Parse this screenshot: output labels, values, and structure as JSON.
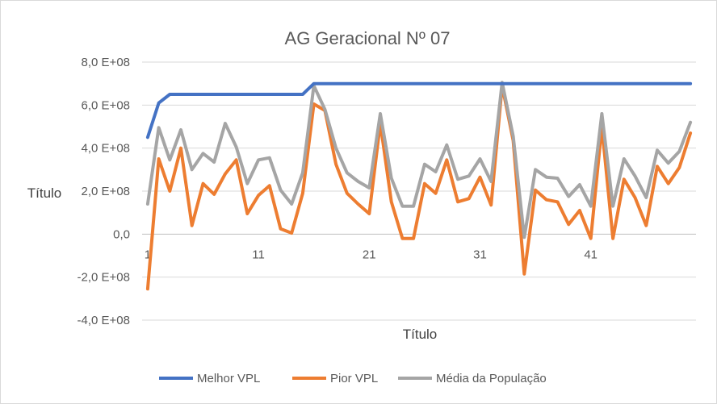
{
  "chart_data": {
    "type": "line",
    "title": "AG Geracional Nº 07",
    "xlabel": "Título",
    "ylabel": "Título",
    "ylim": [
      -400000000,
      800000000
    ],
    "yticks": [
      "8,0 E+08",
      "6,0 E+08",
      "4,0 E+08",
      "2,0 E+08",
      "0,0",
      "-2,0 E+08",
      "-4,0 E+08"
    ],
    "yticks_values": [
      800000000,
      600000000,
      400000000,
      200000000,
      0,
      -200000000,
      -400000000
    ],
    "xticks": [
      "1",
      "11",
      "21",
      "31",
      "41"
    ],
    "x": [
      1,
      2,
      3,
      4,
      5,
      6,
      7,
      8,
      9,
      10,
      11,
      12,
      13,
      14,
      15,
      16,
      17,
      18,
      19,
      20,
      21,
      22,
      23,
      24,
      25,
      26,
      27,
      28,
      29,
      30,
      31,
      32,
      33,
      34,
      35,
      36,
      37,
      38,
      39,
      40,
      41,
      42,
      43,
      44,
      45,
      46,
      47,
      48,
      49,
      50
    ],
    "grid": true,
    "legend_position": "bottom",
    "series": [
      {
        "name": "Melhor VPL",
        "color": "#4472c4",
        "values": [
          450000000,
          610000000,
          650000000,
          650000000,
          650000000,
          650000000,
          650000000,
          650000000,
          650000000,
          650000000,
          650000000,
          650000000,
          650000000,
          650000000,
          650000000,
          700000000,
          700000000,
          700000000,
          700000000,
          700000000,
          700000000,
          700000000,
          700000000,
          700000000,
          700000000,
          700000000,
          700000000,
          700000000,
          700000000,
          700000000,
          700000000,
          700000000,
          700000000,
          700000000,
          700000000,
          700000000,
          700000000,
          700000000,
          700000000,
          700000000,
          700000000,
          700000000,
          700000000,
          700000000,
          700000000,
          700000000,
          700000000,
          700000000,
          700000000,
          700000000
        ]
      },
      {
        "name": "Pior VPL",
        "color": "#ed7d31",
        "values": [
          -255000000,
          350000000,
          200000000,
          400000000,
          40000000,
          235000000,
          185000000,
          280000000,
          345000000,
          95000000,
          180000000,
          225000000,
          25000000,
          5000000,
          190000000,
          605000000,
          575000000,
          325000000,
          190000000,
          140000000,
          95000000,
          515000000,
          150000000,
          -20000000,
          -20000000,
          235000000,
          190000000,
          345000000,
          150000000,
          165000000,
          265000000,
          135000000,
          690000000,
          435000000,
          -185000000,
          205000000,
          160000000,
          150000000,
          45000000,
          110000000,
          -20000000,
          500000000,
          -20000000,
          255000000,
          170000000,
          40000000,
          315000000,
          235000000,
          310000000,
          470000000
        ]
      },
      {
        "name": "Média da População",
        "color": "#a5a5a5",
        "values": [
          140000000,
          495000000,
          345000000,
          485000000,
          300000000,
          375000000,
          335000000,
          515000000,
          405000000,
          235000000,
          345000000,
          355000000,
          205000000,
          140000000,
          285000000,
          690000000,
          580000000,
          400000000,
          285000000,
          245000000,
          215000000,
          560000000,
          260000000,
          130000000,
          130000000,
          325000000,
          290000000,
          415000000,
          255000000,
          270000000,
          350000000,
          245000000,
          705000000,
          455000000,
          -15000000,
          300000000,
          265000000,
          260000000,
          175000000,
          230000000,
          130000000,
          560000000,
          130000000,
          350000000,
          270000000,
          170000000,
          390000000,
          330000000,
          385000000,
          520000000
        ]
      }
    ]
  }
}
